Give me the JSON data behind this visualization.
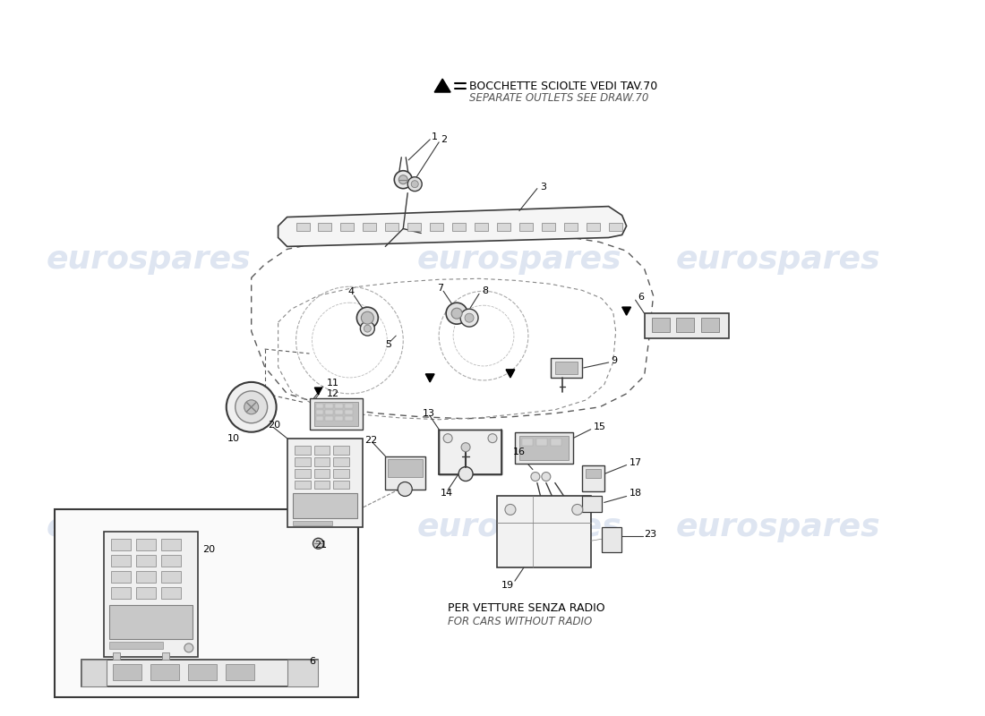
{
  "bg_color": "#ffffff",
  "watermark_color": "#c8d4e8",
  "watermark_text": "eurospares",
  "legend_line1": "BOCCHETTE SCIOLTE VEDI TAV.70",
  "legend_line2": "SEPARATE OUTLETS SEE DRAW.70",
  "bottom_note_line1": "PER VETTURE SENZA RADIO",
  "bottom_note_line2": "FOR CARS WITHOUT RADIO",
  "line_color": "#3a3a3a",
  "dash_color": "#5a5a5a",
  "light_gray": "#e0e0e0",
  "mid_gray": "#c0c0c0",
  "dark_gray": "#808080"
}
